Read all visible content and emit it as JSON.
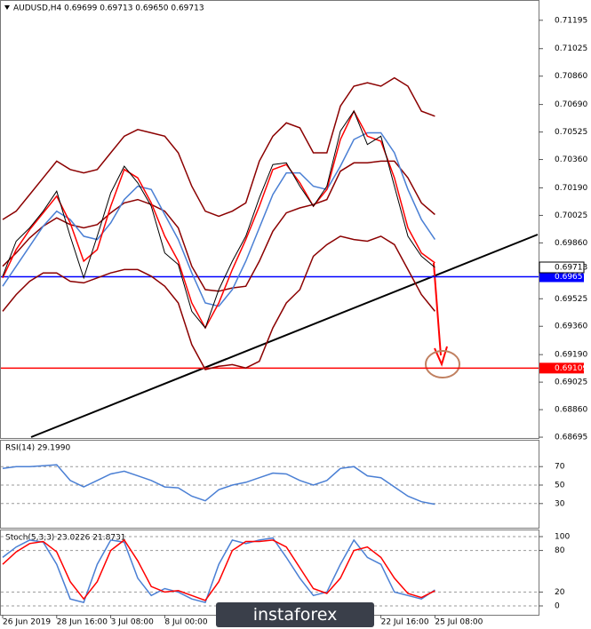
{
  "chart_data": [
    {
      "type": "line",
      "title": "AUDUSD,H4  0.69699 0.69713 0.69650 0.69713",
      "categories": [
        "26 Jun 2019",
        null,
        null,
        null,
        "28 Jun 16:00",
        null,
        null,
        null,
        "3 Jul 08:00",
        null,
        null,
        null,
        "8 Jul 00:00",
        null,
        null,
        null,
        null,
        null,
        null,
        null,
        null,
        null,
        null,
        null,
        null,
        null,
        null,
        null,
        "22 Jul 16:00",
        null,
        null,
        null,
        "25 Jul 08:00"
      ],
      "ylim": [
        0.6869,
        0.7129
      ],
      "yticks": [
        0.71195,
        0.71025,
        {
          "value": 0.7086,
          "label": "0.70860"
        },
        {
          "value": 0.7069,
          "label": "0.70690"
        },
        0.70525,
        {
          "value": 0.7036,
          "label": "0.70360"
        },
        {
          "value": 0.7019,
          "label": "0.70190"
        },
        0.70025,
        {
          "value": 0.6986,
          "label": "0.69860"
        },
        0.69525,
        {
          "value": 0.6936,
          "label": "0.69360"
        },
        {
          "value": 0.6919,
          "label": "0.69190"
        },
        0.69025,
        {
          "value": 0.6886,
          "label": "0.68860"
        },
        0.68695
      ],
      "last_price": 0.69713,
      "hlines": [
        {
          "value": 0.69657,
          "color": "#0000ff"
        },
        {
          "value": 0.69109,
          "color": "#ff0000"
        }
      ],
      "series": [
        {
          "color": "#8b0000",
          "values": [
            0.7,
            0.7005,
            0.7015,
            0.7025,
            0.7035,
            0.703,
            0.7028,
            0.703,
            0.704,
            0.705,
            0.7054,
            0.7052,
            0.705,
            0.704,
            0.702,
            0.7005,
            0.7002,
            0.7005,
            0.701,
            0.7035,
            0.705,
            0.7058,
            0.7055,
            0.704,
            0.704,
            0.7068,
            0.708,
            0.7082,
            0.708,
            0.7085,
            0.708,
            0.7065,
            0.7062
          ]
        },
        {
          "color": "#8b0000",
          "values": [
            0.6972,
            0.698,
            0.6989,
            0.6996,
            0.7001,
            0.6997,
            0.6995,
            0.6997,
            0.7004,
            0.701,
            0.7012,
            0.7009,
            0.7005,
            0.6995,
            0.6972,
            0.6958,
            0.6957,
            0.6959,
            0.696,
            0.6975,
            0.6993,
            0.7004,
            0.7007,
            0.7009,
            0.7012,
            0.7029,
            0.7034,
            0.7034,
            0.7035,
            0.7035,
            0.7025,
            0.701,
            0.7003
          ]
        },
        {
          "color": "#8b0000",
          "values": [
            0.6945,
            0.6955,
            0.6963,
            0.6968,
            0.6968,
            0.6963,
            0.6962,
            0.6965,
            0.6968,
            0.697,
            0.697,
            0.6966,
            0.696,
            0.695,
            0.6925,
            0.691,
            0.6912,
            0.6913,
            0.6911,
            0.6915,
            0.6935,
            0.695,
            0.6958,
            0.6978,
            0.6985,
            0.699,
            0.6988,
            0.6987,
            0.699,
            0.6985,
            0.697,
            0.6955,
            0.6945
          ]
        },
        {
          "color": "#4a7fd4",
          "values": [
            0.696,
            0.6972,
            0.6984,
            0.6996,
            0.7005,
            0.7,
            0.699,
            0.6988,
            0.6998,
            0.7012,
            0.702,
            0.7018,
            0.7003,
            0.6988,
            0.6968,
            0.695,
            0.6948,
            0.6958,
            0.6975,
            0.6995,
            0.7015,
            0.7028,
            0.7028,
            0.702,
            0.7018,
            0.7032,
            0.7048,
            0.7052,
            0.7052,
            0.704,
            0.7018,
            0.7,
            0.6988
          ]
        },
        {
          "color": "#ff0000",
          "values": [
            0.6965,
            0.6982,
            0.6994,
            0.7004,
            0.7014,
            0.6998,
            0.6975,
            0.6982,
            0.7008,
            0.703,
            0.7025,
            0.701,
            0.699,
            0.6975,
            0.695,
            0.6935,
            0.695,
            0.697,
            0.6988,
            0.7008,
            0.703,
            0.7033,
            0.7022,
            0.7008,
            0.7018,
            0.7048,
            0.7065,
            0.705,
            0.7047,
            0.7025,
            0.6995,
            0.698,
            0.6974
          ]
        },
        {
          "color": "#000000",
          "values": [
            0.6966,
            0.6987,
            0.6995,
            0.7005,
            0.7017,
            0.699,
            0.6965,
            0.699,
            0.7016,
            0.7032,
            0.7022,
            0.7008,
            0.698,
            0.6973,
            0.6945,
            0.6935,
            0.6958,
            0.6975,
            0.699,
            0.7013,
            0.7033,
            0.7034,
            0.702,
            0.7008,
            0.702,
            0.7053,
            0.7065,
            0.7045,
            0.705,
            0.702,
            0.699,
            0.6978,
            0.69713
          ]
        }
      ]
    },
    {
      "type": "line",
      "title": "RSI(14) 29.1990",
      "ylim": [
        0,
        100
      ],
      "yticks": [
        70,
        50,
        30
      ],
      "series": [
        {
          "color": "#4a7fd4",
          "values": [
            68,
            70,
            70,
            71,
            72,
            55,
            48,
            55,
            62,
            65,
            60,
            55,
            48,
            47,
            38,
            33,
            45,
            50,
            53,
            58,
            63,
            62,
            55,
            50,
            55,
            68,
            70,
            60,
            58,
            48,
            38,
            32,
            29.199
          ]
        }
      ]
    },
    {
      "type": "line",
      "title": "Stoch(5,3,3) 23.0226 21.8731",
      "ylim": [
        0,
        100
      ],
      "yticks": [
        100,
        80,
        20,
        0
      ],
      "series": [
        {
          "color": "#4a7fd4",
          "values": [
            70,
            85,
            95,
            92,
            60,
            10,
            5,
            60,
            95,
            92,
            40,
            15,
            25,
            20,
            10,
            5,
            60,
            95,
            90,
            95,
            98,
            70,
            40,
            15,
            20,
            60,
            95,
            70,
            60,
            20,
            15,
            10,
            23.0226
          ]
        },
        {
          "color": "#ff0000",
          "values": [
            60,
            78,
            90,
            93,
            78,
            35,
            10,
            35,
            80,
            95,
            65,
            28,
            20,
            22,
            15,
            8,
            35,
            80,
            93,
            93,
            95,
            85,
            55,
            25,
            18,
            40,
            80,
            85,
            70,
            40,
            18,
            12,
            21.8731
          ]
        }
      ]
    }
  ],
  "watermark": "instaforex"
}
